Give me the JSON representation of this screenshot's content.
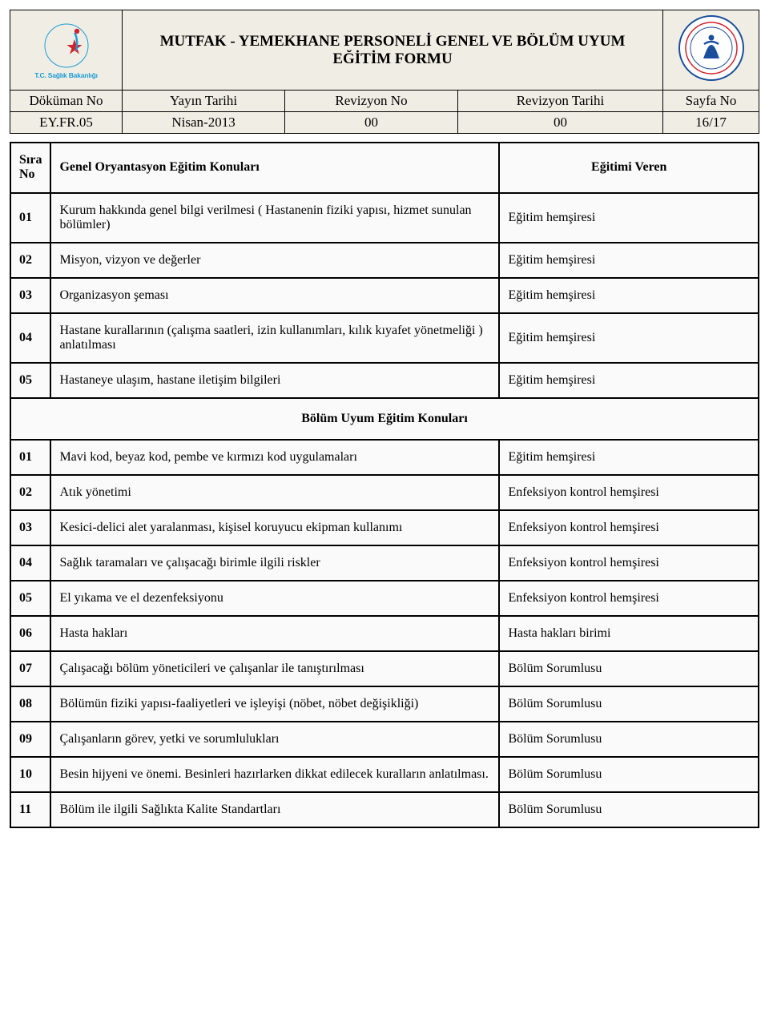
{
  "header": {
    "title_line1": "MUTFAK - YEMEKHANE PERSONELİ GENEL VE BÖLÜM UYUM",
    "title_line2": "EĞİTİM FORMU",
    "logo_left_text": "T.C. Sağlık Bakanlığı",
    "labels": {
      "dokuman_no": "Döküman  No",
      "yayin_tarihi": "Yayın Tarihi",
      "revizyon_no": "Revizyon No",
      "revizyon_tarihi": "Revizyon Tarihi",
      "sayfa_no": "Sayfa No"
    },
    "values": {
      "dokuman_no": "EY.FR.05",
      "yayin_tarihi": "Nisan-2013",
      "revizyon_no": "00",
      "revizyon_tarihi": "00",
      "sayfa_no": "16/17"
    }
  },
  "table": {
    "head": {
      "sira": "Sıra",
      "no": "No",
      "col_topic": "Genel Oryantasyon Eğitim Konuları",
      "col_provider": "Eğitimi Veren"
    },
    "providers": {
      "eh": "Eğitim hemşiresi",
      "ekh": "Enfeksiyon kontrol hemşiresi",
      "hhb": "Hasta hakları birimi",
      "bs": "Bölüm Sorumlusu"
    },
    "section1": [
      {
        "n": "01",
        "t": "Kurum hakkında genel bilgi verilmesi ( Hastanenin fiziki yapısı, hizmet sunulan bölümler)",
        "p": "eh"
      },
      {
        "n": "02",
        "t": "Misyon, vizyon ve değerler",
        "p": "eh"
      },
      {
        "n": "03",
        "t": "Organizasyon şeması",
        "p": "eh"
      },
      {
        "n": "04",
        "t": "Hastane kurallarının (çalışma saatleri, izin kullanımları, kılık kıyafet yönetmeliği )  anlatılması",
        "p": "eh"
      },
      {
        "n": "05",
        "t": "Hastaneye ulaşım, hastane iletişim bilgileri",
        "p": "eh"
      }
    ],
    "section_divider": "Bölüm Uyum Eğitim Konuları",
    "section2": [
      {
        "n": "01",
        "t": "Mavi kod, beyaz kod,  pembe ve kırmızı kod uygulamaları",
        "p": "eh"
      },
      {
        "n": "02",
        "t": "Atık yönetimi",
        "p": "ekh"
      },
      {
        "n": "03",
        "t": "Kesici-delici alet yaralanması, kişisel koruyucu ekipman kullanımı",
        "p": "ekh"
      },
      {
        "n": "04",
        "t": "Sağlık taramaları ve çalışacağı birimle ilgili riskler",
        "p": "ekh"
      },
      {
        "n": "05",
        "t": "El yıkama ve el dezenfeksiyonu",
        "p": "ekh"
      },
      {
        "n": "06",
        "t": "Hasta hakları",
        "p": "hhb"
      },
      {
        "n": "07",
        "t": "Çalışacağı bölüm yöneticileri ve çalışanlar ile tanıştırılması",
        "p": "bs"
      },
      {
        "n": "08",
        "t": "Bölümün fiziki yapısı-faaliyetleri ve işleyişi (nöbet, nöbet değişikliği)",
        "p": "bs"
      },
      {
        "n": "09",
        "t": "Çalışanların görev, yetki ve sorumlulukları",
        "p": "bs"
      },
      {
        "n": "10",
        "t": "Besin hijyeni ve önemi. Besinleri hazırlarken dikkat edilecek kuralların anlatılması.",
        "p": "bs"
      },
      {
        "n": "11",
        "t": "Bölüm ile ilgili Sağlıkta Kalite Standartları",
        "p": "bs"
      }
    ]
  },
  "colors": {
    "header_bg": "#f0eee4",
    "row_bg": "#fafafa",
    "border": "#000000",
    "logo_red": "#d2232a",
    "logo_blue": "#1a9bd6",
    "seal_blue": "#1b4f9c",
    "text": "#000000"
  }
}
